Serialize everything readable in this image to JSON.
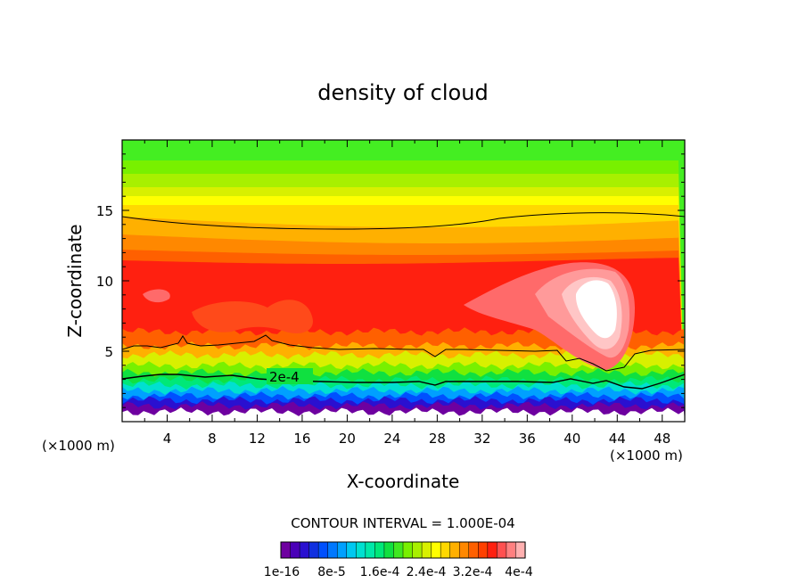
{
  "chart_data": {
    "type": "heatmap",
    "title": "density of cloud",
    "xlabel": "X-coordinate",
    "ylabel": "Z-coordinate",
    "x_unit": "(×1000 m)",
    "y_unit": "(×1000 m)",
    "xlim": [
      0,
      50
    ],
    "ylim": [
      0,
      20
    ],
    "x_ticks": [
      4,
      8,
      12,
      16,
      20,
      24,
      28,
      32,
      36,
      40,
      44,
      48
    ],
    "y_ticks": [
      5,
      10,
      15
    ],
    "contour_label": "2e-4",
    "contour_interval": "CONTOUR INTERVAL = 1.000E-04",
    "colorbar_labels": [
      "1e-16",
      "8e-5",
      "1.6e-4",
      "2.4e-4",
      "3.2e-4",
      "4e-4"
    ],
    "colors": [
      "#6e00a0",
      "#4a00b8",
      "#2a10d0",
      "#1030e0",
      "#0050ff",
      "#0078ff",
      "#00a0ff",
      "#00c8f0",
      "#00e0d0",
      "#00e8a8",
      "#00e878",
      "#10e040",
      "#40e820",
      "#78f000",
      "#a8f000",
      "#d8f000",
      "#ffff00",
      "#ffd800",
      "#ffb000",
      "#ff8800",
      "#ff6000",
      "#ff4000",
      "#ff2010",
      "#ff5050",
      "#ff8080",
      "#ffb0b0"
    ]
  }
}
